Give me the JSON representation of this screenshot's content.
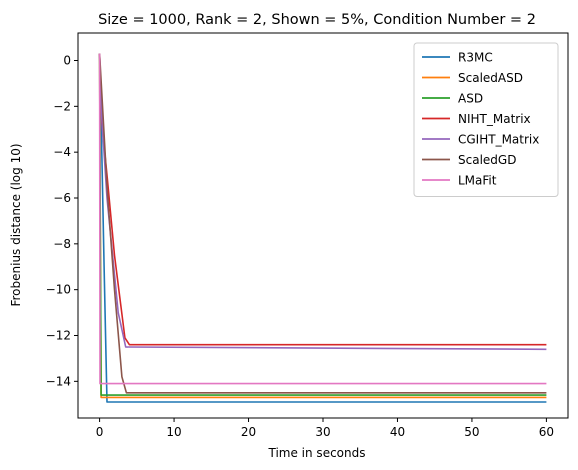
{
  "chart_data": {
    "type": "line",
    "title": "Size = 1000, Rank = 2, Shown = 5%, Condition Number = 2",
    "xlabel": "Time in seconds",
    "ylabel": "Frobenius distance (log 10)",
    "xlim": [
      -2.9,
      62.9
    ],
    "ylim": [
      -15.6,
      1.2
    ],
    "x_ticks": [
      0,
      10,
      20,
      30,
      40,
      50,
      60
    ],
    "y_ticks": [
      0,
      -2,
      -4,
      -6,
      -8,
      -10,
      -12,
      -14
    ],
    "grid": false,
    "legend_position": "top-right",
    "series": [
      {
        "name": "R3MC",
        "color": "#1f77b4",
        "points": [
          [
            0,
            0.3
          ],
          [
            0.3,
            -4.0
          ],
          [
            0.6,
            -9.0
          ],
          [
            0.9,
            -13.5
          ],
          [
            1.0,
            -14.9
          ],
          [
            60,
            -14.9
          ]
        ]
      },
      {
        "name": "ScaledASD",
        "color": "#ff7f0e",
        "points": [
          [
            0,
            0.3
          ],
          [
            0.1,
            -7.0
          ],
          [
            0.2,
            -14.7
          ],
          [
            60,
            -14.7
          ]
        ]
      },
      {
        "name": "ASD",
        "color": "#2ca02c",
        "points": [
          [
            0,
            0.3
          ],
          [
            0.1,
            -7.5
          ],
          [
            0.2,
            -14.6
          ],
          [
            60,
            -14.6
          ]
        ]
      },
      {
        "name": "NIHT_Matrix",
        "color": "#d62728",
        "points": [
          [
            0,
            0.3
          ],
          [
            0.3,
            -2.7
          ],
          [
            1.0,
            -5.0
          ],
          [
            2.0,
            -8.5
          ],
          [
            3.4,
            -12.1
          ],
          [
            4.0,
            -12.4
          ],
          [
            60,
            -12.4
          ]
        ]
      },
      {
        "name": "CGIHT_Matrix",
        "color": "#9467bd",
        "points": [
          [
            0,
            0.3
          ],
          [
            0.3,
            -2.5
          ],
          [
            1.0,
            -6.0
          ],
          [
            2.5,
            -11.0
          ],
          [
            3.5,
            -12.5
          ],
          [
            60,
            -12.6
          ]
        ]
      },
      {
        "name": "ScaledGD",
        "color": "#8c564b",
        "points": [
          [
            0,
            0.3
          ],
          [
            1.0,
            -5.5
          ],
          [
            2.0,
            -10.0
          ],
          [
            3.0,
            -13.8
          ],
          [
            3.6,
            -14.5
          ],
          [
            60,
            -14.5
          ]
        ]
      },
      {
        "name": "LMaFit",
        "color": "#e377c2",
        "points": [
          [
            0,
            0.3
          ],
          [
            0.05,
            -14.1
          ],
          [
            60,
            -14.1
          ]
        ]
      }
    ]
  }
}
